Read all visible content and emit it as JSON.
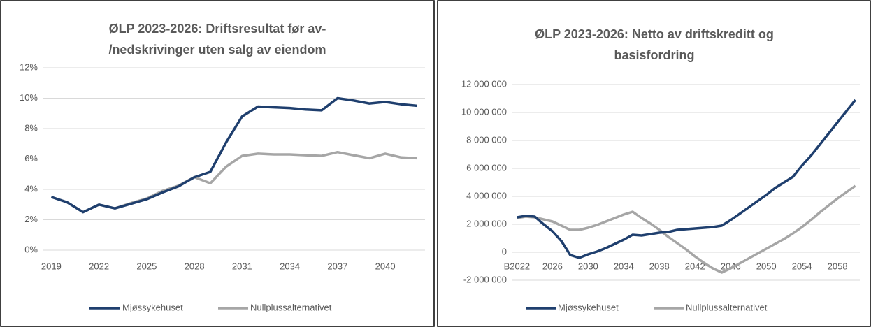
{
  "chart_data": [
    {
      "type": "line",
      "title": [
        "ØLP 2023-2026: Driftsresultat før av-",
        "/nedskrivinger uten salg av eiendom"
      ],
      "x": [
        2019,
        2020,
        2021,
        2022,
        2023,
        2024,
        2025,
        2026,
        2027,
        2028,
        2029,
        2030,
        2031,
        2032,
        2033,
        2034,
        2035,
        2036,
        2037,
        2038,
        2039,
        2040,
        2041,
        2042
      ],
      "xlim": [
        2018.5,
        2042.5
      ],
      "xticks": [
        2019,
        2022,
        2025,
        2028,
        2031,
        2034,
        2037,
        2040
      ],
      "ylim": [
        0,
        12
      ],
      "yticks": [
        {
          "value": 0,
          "label": "0%"
        },
        {
          "value": 2,
          "label": "2%"
        },
        {
          "value": 4,
          "label": "4%"
        },
        {
          "value": 6,
          "label": "6%"
        },
        {
          "value": 8,
          "label": "8%"
        },
        {
          "value": 10,
          "label": "10%"
        },
        {
          "value": 12,
          "label": "12%"
        }
      ],
      "grid": true,
      "legend": "bottom",
      "series": [
        {
          "name": "Mjøssykehuset",
          "color": "#1f3f6e",
          "values": [
            3.5,
            3.15,
            2.5,
            3.0,
            2.75,
            3.05,
            3.35,
            3.8,
            4.2,
            4.8,
            5.15,
            7.1,
            8.8,
            9.45,
            9.4,
            9.35,
            9.25,
            9.2,
            10.0,
            9.85,
            9.65,
            9.75,
            9.6,
            9.5
          ]
        },
        {
          "name": "Nullplussalternativet",
          "color": "#a6a6a6",
          "values": [
            3.5,
            3.15,
            2.5,
            3.0,
            2.75,
            3.1,
            3.4,
            3.9,
            4.25,
            4.8,
            4.4,
            5.5,
            6.2,
            6.35,
            6.3,
            6.3,
            6.25,
            6.2,
            6.45,
            6.25,
            6.05,
            6.35,
            6.1,
            6.05
          ]
        }
      ]
    },
    {
      "type": "line",
      "title": [
        "ØLP 2023-2026: Netto av driftskreditt og",
        "basisfordring"
      ],
      "categories": [
        "B2022",
        null,
        null,
        null,
        "2026",
        null,
        null,
        null,
        "2030",
        null,
        null,
        null,
        "2034",
        null,
        null,
        null,
        "2038",
        null,
        null,
        null,
        "2042",
        null,
        null,
        null,
        "2046",
        null,
        null,
        null,
        "2050",
        null,
        null,
        null,
        "2054",
        null,
        null,
        null,
        "2058",
        null,
        null
      ],
      "ylim": [
        -2000000,
        12000000
      ],
      "yticks": [
        {
          "value": -2000000,
          "label": "-2 000 000"
        },
        0,
        {
          "value": 2000000,
          "label": "2 000 000"
        },
        {
          "value": 4000000,
          "label": "4 000 000"
        },
        {
          "value": 6000000,
          "label": "6 000 000"
        },
        {
          "value": 8000000,
          "label": "8 000 000"
        },
        {
          "value": 10000000,
          "label": "10 000 000"
        },
        {
          "value": 12000000,
          "label": "12 000 000"
        }
      ],
      "grid": true,
      "legend": "bottom",
      "series": [
        {
          "name": "Mjøssykehuset",
          "color": "#1f3f6e",
          "values": [
            2500000,
            2600000,
            2550000,
            2000000,
            1500000,
            800000,
            -200000,
            -400000,
            -150000,
            50000,
            300000,
            600000,
            900000,
            1250000,
            1200000,
            1300000,
            1400000,
            1450000,
            1600000,
            1650000,
            1700000,
            1750000,
            1800000,
            1900000,
            2300000,
            2750000,
            3200000,
            3650000,
            4100000,
            4600000,
            5000000,
            5400000,
            6200000,
            6900000,
            7700000,
            8500000,
            9300000,
            10100000,
            10900000
          ]
        },
        {
          "name": "Nullplussalternativet",
          "color": "#a6a6a6",
          "values": [
            2450000,
            2550000,
            2500000,
            2350000,
            2200000,
            1900000,
            1600000,
            1600000,
            1750000,
            1950000,
            2200000,
            2450000,
            2700000,
            2900000,
            2450000,
            2050000,
            1600000,
            1100000,
            650000,
            200000,
            -300000,
            -750000,
            -1150000,
            -1450000,
            -1150000,
            -800000,
            -450000,
            -100000,
            250000,
            600000,
            950000,
            1350000,
            1800000,
            2300000,
            2850000,
            3350000,
            3850000,
            4300000,
            4750000
          ]
        }
      ]
    }
  ]
}
